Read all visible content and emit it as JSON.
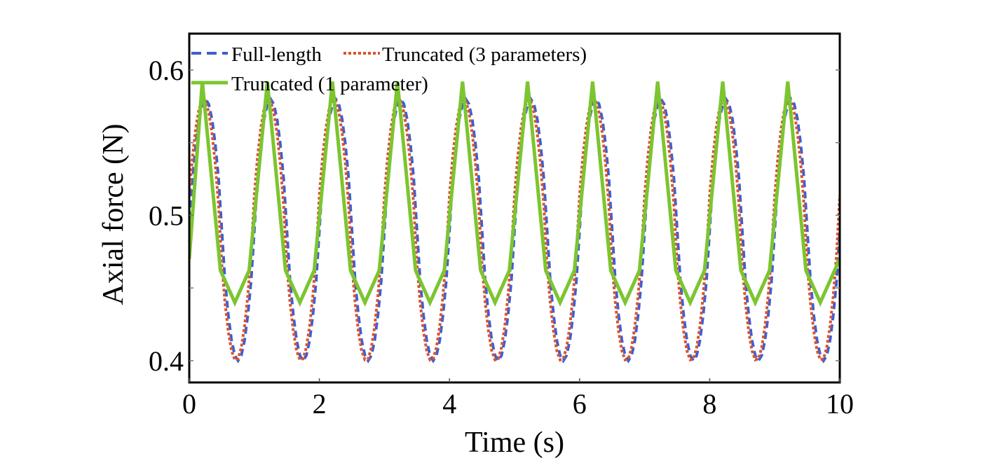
{
  "chart_data": {
    "type": "line",
    "xlabel": "Time (s)",
    "ylabel": "Axial force (N)",
    "xlim": [
      0,
      10
    ],
    "ylim": [
      0.385,
      0.625
    ],
    "xticks": [
      "0",
      "2",
      "4",
      "6",
      "8",
      "10"
    ],
    "yticks": [
      "0.4",
      "0.5",
      "0.6"
    ],
    "grid": false,
    "legend_position": "top-left",
    "series": [
      {
        "name": "Full-length",
        "color": "#3a5fd9",
        "style": "dashed",
        "period": 1.0,
        "phase": 0.25,
        "max": 0.58,
        "min": 0.4
      },
      {
        "name": "Truncated (3 parameters)",
        "color": "#d9542b",
        "style": "dotted",
        "period": 1.0,
        "phase": 0.22,
        "max": 0.58,
        "min": 0.4
      },
      {
        "name": "Truncated (1 parameter)",
        "color": "#7cc530",
        "style": "solid",
        "period": 1.0,
        "peak_times": [
          0.2,
          1.2,
          2.2,
          3.2,
          4.2,
          5.2,
          6.2,
          7.2,
          8.2,
          9.2
        ],
        "peak_value": 0.592,
        "trough_value": 0.44,
        "shoulder_value": 0.462,
        "start_value": 0.47
      }
    ]
  }
}
